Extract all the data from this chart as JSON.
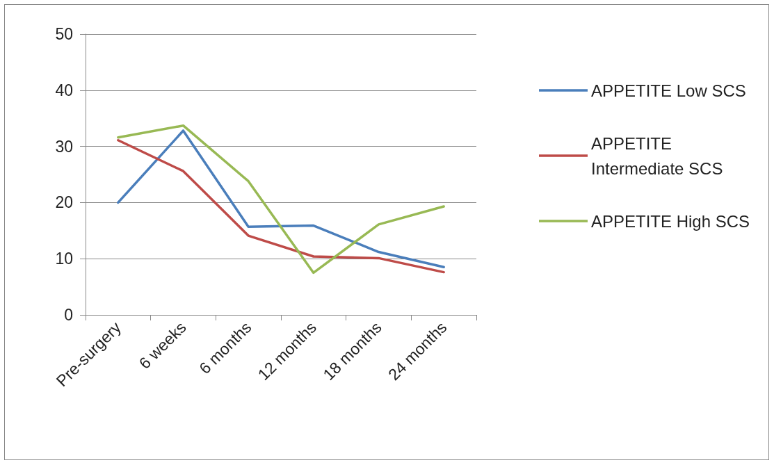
{
  "chart_data": {
    "type": "line",
    "categories": [
      "Pre-surgery",
      "6 weeks",
      "6 months",
      "12 months",
      "18 months",
      "24 months"
    ],
    "series": [
      {
        "name": "APPETITE Low SCS",
        "color": "#4a7ebb",
        "values": [
          20.0,
          32.8,
          15.7,
          15.9,
          11.2,
          8.5
        ]
      },
      {
        "name": "APPETITE Intermediate SCS",
        "color": "#be4b48",
        "values": [
          31.1,
          25.6,
          14.1,
          10.4,
          10.1,
          7.6
        ]
      },
      {
        "name": "APPETITE High SCS",
        "color": "#98b954",
        "values": [
          31.6,
          33.7,
          23.8,
          7.5,
          16.1,
          19.3
        ]
      }
    ],
    "ylim": [
      0,
      50
    ],
    "yticks": [
      0,
      10,
      20,
      30,
      40,
      50
    ],
    "grid": "y",
    "legend": "right",
    "marker": "none",
    "line_style": "solid"
  }
}
